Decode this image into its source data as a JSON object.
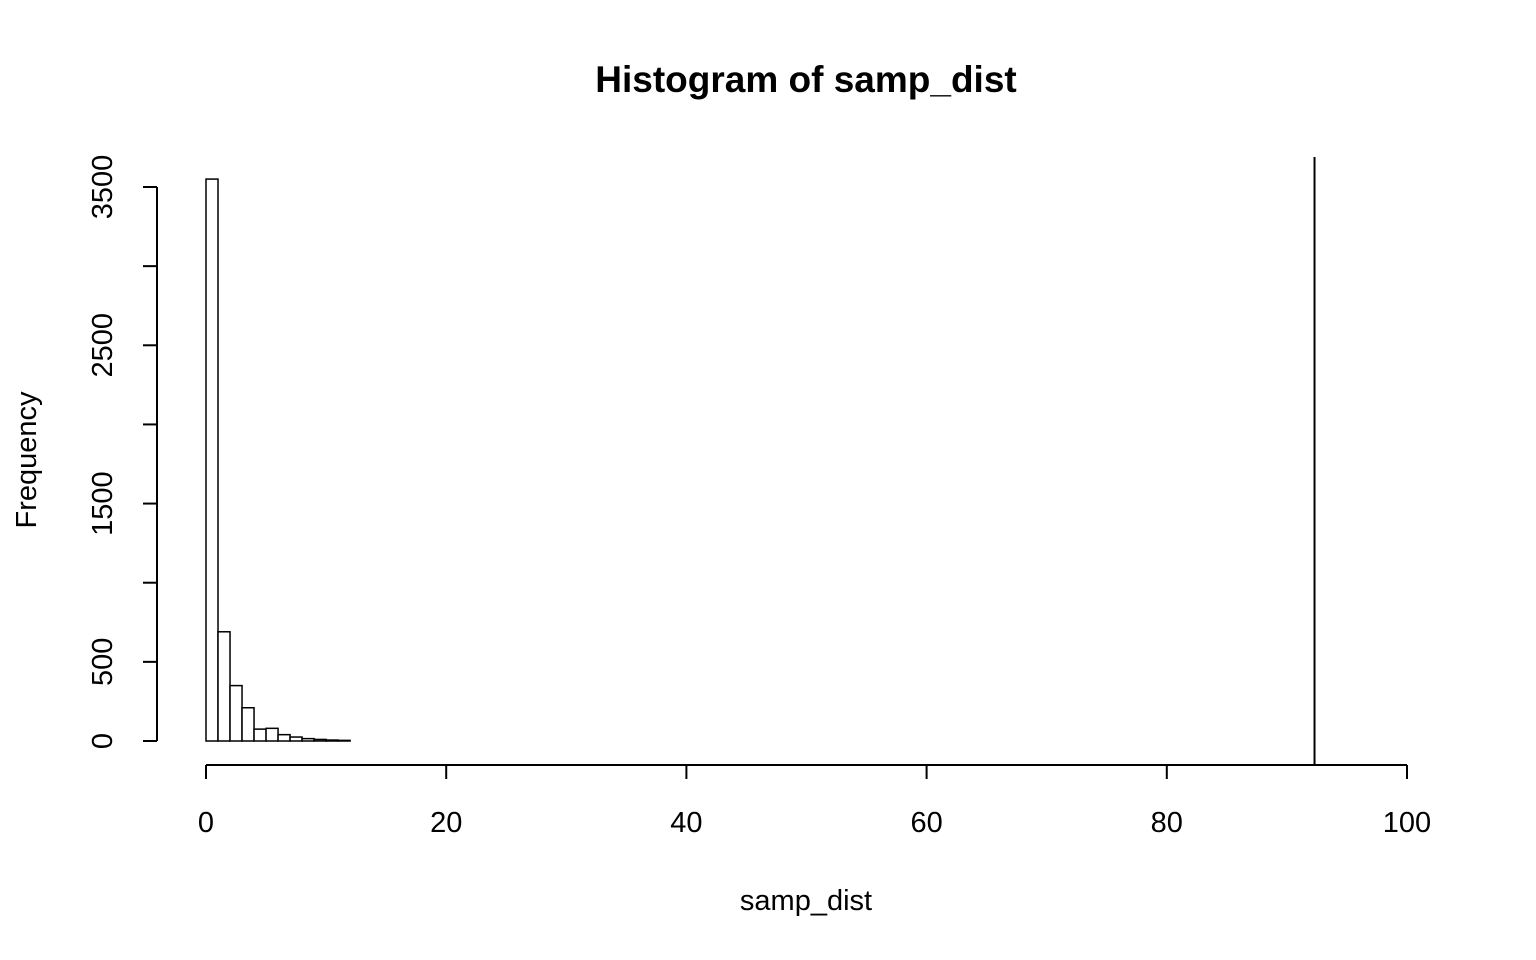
{
  "chart_data": {
    "type": "bar",
    "title": "Histogram of samp_dist",
    "xlabel": "samp_dist",
    "ylabel": "Frequency",
    "xlim": [
      0,
      100
    ],
    "ylim": [
      0,
      3500
    ],
    "x_ticks": [
      0,
      20,
      40,
      60,
      80,
      100
    ],
    "y_ticks": [
      0,
      500,
      1000,
      1500,
      2000,
      2500,
      3000,
      3500
    ],
    "y_tick_labels": [
      "0",
      "500",
      "",
      "1500",
      "",
      "2500",
      "",
      "3500"
    ],
    "bin_width": 1,
    "bins_start": [
      0,
      1,
      2,
      3,
      4,
      5,
      6,
      7,
      8,
      9,
      10,
      11
    ],
    "values": [
      3550,
      690,
      350,
      210,
      75,
      80,
      40,
      25,
      15,
      10,
      6,
      4
    ],
    "vline_x": 92.3,
    "grid": false
  }
}
